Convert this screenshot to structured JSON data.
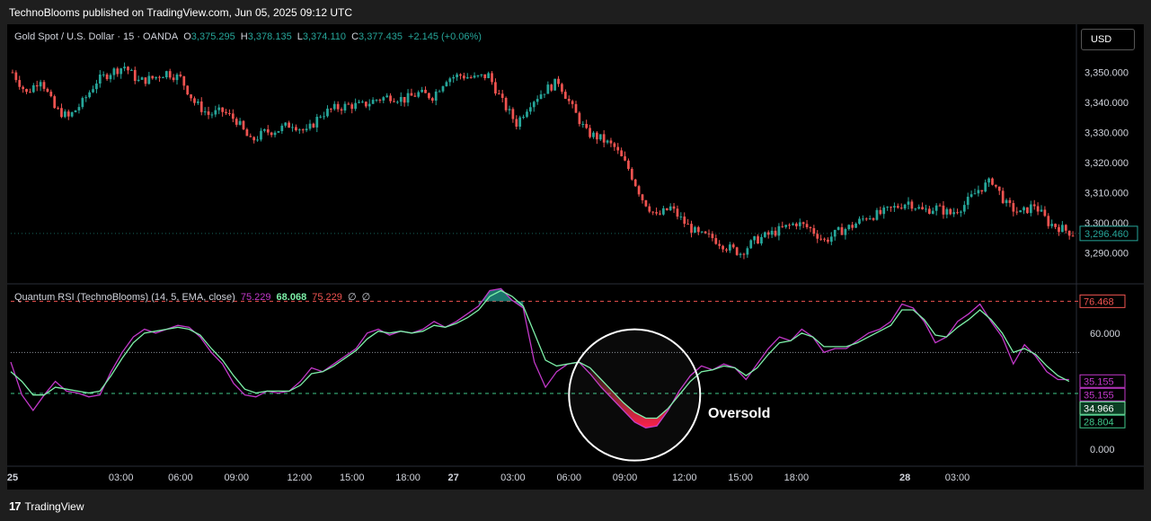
{
  "header": {
    "publisher": "TechnoBlooms published on TradingView.com, Jun 05, 2025 09:12 UTC"
  },
  "footer": {
    "brand": "TradingView"
  },
  "currency_button": "USD",
  "price_legend": {
    "symbol": "Gold Spot / U.S. Dollar · 15 · OANDA",
    "o_label": "O",
    "o": "3,375.295",
    "h_label": "H",
    "h": "3,378.135",
    "l_label": "L",
    "l": "3,374.110",
    "c_label": "C",
    "c": "3,377.435",
    "change": "+2.145 (+0.06%)"
  },
  "rsi_legend": {
    "name": "Quantum RSI (TechnoBlooms) (14, 5, EMA, close)",
    "v1": "75.229",
    "v2": "68.068",
    "v3": "75.229",
    "v4": "∅",
    "v5": "∅"
  },
  "annotation": "Oversold",
  "colors": {
    "up": "#26a69a",
    "down": "#ef5350",
    "rsi": "#c238c9",
    "signal": "#7df0a8",
    "upper": "#ef5350",
    "lower": "#3fc78a"
  },
  "chart_data": [
    {
      "type": "candlestick",
      "title": "Gold Spot / U.S. Dollar · 15 · OANDA",
      "ylim": [
        3280,
        3360
      ],
      "yticks": [
        "3,350.000",
        "3,340.000",
        "3,330.000",
        "3,320.000",
        "3,310.000",
        "3,300.000",
        "3,290.000"
      ],
      "ytick_values": [
        3350,
        3340,
        3330,
        3320,
        3310,
        3300,
        3290
      ],
      "last_price": "3,296.460",
      "last_price_value": 3296.46,
      "close_path": [
        [
          0,
          3350
        ],
        [
          4,
          3343
        ],
        [
          8,
          3348
        ],
        [
          12,
          3338
        ],
        [
          16,
          3335
        ],
        [
          20,
          3340
        ],
        [
          24,
          3347
        ],
        [
          28,
          3350
        ],
        [
          32,
          3352
        ],
        [
          36,
          3347
        ],
        [
          40,
          3348
        ],
        [
          44,
          3350
        ],
        [
          48,
          3348
        ],
        [
          52,
          3340
        ],
        [
          56,
          3336
        ],
        [
          60,
          3337
        ],
        [
          64,
          3334
        ],
        [
          68,
          3327
        ],
        [
          72,
          3330
        ],
        [
          76,
          3331
        ],
        [
          80,
          3333
        ],
        [
          84,
          3330
        ],
        [
          88,
          3336
        ],
        [
          92,
          3338
        ],
        [
          96,
          3339
        ],
        [
          100,
          3339
        ],
        [
          104,
          3341
        ],
        [
          108,
          3342
        ],
        [
          112,
          3341
        ],
        [
          116,
          3343
        ],
        [
          120,
          3342
        ],
        [
          124,
          3348
        ],
        [
          128,
          3349
        ],
        [
          132,
          3348
        ],
        [
          136,
          3349
        ],
        [
          140,
          3340
        ],
        [
          144,
          3333
        ],
        [
          148,
          3340
        ],
        [
          152,
          3344
        ],
        [
          156,
          3347
        ],
        [
          160,
          3338
        ],
        [
          164,
          3330
        ],
        [
          168,
          3328
        ],
        [
          172,
          3325
        ],
        [
          176,
          3318
        ],
        [
          180,
          3308
        ],
        [
          184,
          3302
        ],
        [
          188,
          3305
        ],
        [
          192,
          3300
        ],
        [
          196,
          3296
        ],
        [
          200,
          3295
        ],
        [
          204,
          3292
        ],
        [
          208,
          3290
        ],
        [
          212,
          3294
        ],
        [
          216,
          3296
        ],
        [
          220,
          3298
        ],
        [
          224,
          3300
        ],
        [
          228,
          3298
        ],
        [
          232,
          3294
        ],
        [
          236,
          3297
        ],
        [
          240,
          3299
        ],
        [
          244,
          3302
        ],
        [
          248,
          3303
        ],
        [
          252,
          3305
        ],
        [
          256,
          3307
        ],
        [
          260,
          3304
        ],
        [
          264,
          3305
        ],
        [
          268,
          3303
        ],
        [
          272,
          3306
        ],
        [
          276,
          3311
        ],
        [
          280,
          3314
        ],
        [
          284,
          3306
        ],
        [
          288,
          3303
        ],
        [
          292,
          3306
        ],
        [
          296,
          3300
        ],
        [
          300,
          3298
        ],
        [
          303,
          3296.46
        ]
      ],
      "xticks": [
        "25",
        "03:00",
        "06:00",
        "09:00",
        "12:00",
        "15:00",
        "18:00",
        "27",
        "03:00",
        "06:00",
        "09:00",
        "12:00",
        "15:00",
        "18:00",
        "28",
        "03:00"
      ],
      "xtick_bars": [
        0,
        31,
        48,
        64,
        82,
        97,
        113,
        126,
        143,
        159,
        175,
        192,
        208,
        224,
        255,
        270
      ]
    },
    {
      "type": "line",
      "title": "Quantum RSI (TechnoBlooms) (14, 5, EMA, close)",
      "ylim": [
        -7,
        85
      ],
      "yticks": [
        "60.000",
        "0.000"
      ],
      "ytick_values": [
        60,
        0
      ],
      "levels": {
        "upper": 76.468,
        "middle": 50,
        "lower": 28.804
      },
      "last_values": [
        {
          "label": "76.468",
          "value": 76.468,
          "color": "#ef5350"
        },
        {
          "label": "35.155",
          "value": 35.155,
          "color": "#c238c9"
        },
        {
          "label": "35.155",
          "value": 35.155,
          "color": "#c238c9"
        },
        {
          "label": "34.966",
          "value": 34.966,
          "color": "#7df0a8"
        },
        {
          "label": "28.804",
          "value": 28.804,
          "color": "#3fc78a"
        }
      ],
      "series": [
        {
          "values": [
            [
              0,
              45
            ],
            [
              4,
              28
            ],
            [
              8,
              20
            ],
            [
              12,
              28
            ],
            [
              16,
              35
            ],
            [
              20,
              30
            ],
            [
              24,
              29
            ],
            [
              28,
              27
            ],
            [
              32,
              28
            ],
            [
              36,
              40
            ],
            [
              40,
              50
            ],
            [
              44,
              58
            ],
            [
              48,
              62
            ],
            [
              52,
              60
            ],
            [
              56,
              62
            ],
            [
              60,
              64
            ],
            [
              64,
              63
            ],
            [
              68,
              58
            ],
            [
              72,
              50
            ],
            [
              76,
              44
            ],
            [
              80,
              34
            ],
            [
              84,
              28
            ],
            [
              88,
              27
            ],
            [
              92,
              30
            ],
            [
              96,
              29
            ],
            [
              100,
              30
            ],
            [
              104,
              35
            ],
            [
              108,
              42
            ],
            [
              112,
              40
            ],
            [
              116,
              44
            ],
            [
              120,
              48
            ],
            [
              124,
              52
            ],
            [
              128,
              60
            ],
            [
              132,
              62
            ],
            [
              136,
              59
            ],
            [
              140,
              61
            ],
            [
              144,
              60
            ],
            [
              148,
              62
            ],
            [
              152,
              66
            ],
            [
              156,
              63
            ],
            [
              160,
              66
            ],
            [
              164,
              70
            ],
            [
              168,
              74
            ],
            [
              172,
              82
            ],
            [
              176,
              83
            ],
            [
              180,
              77
            ],
            [
              184,
              73
            ],
            [
              188,
              45
            ],
            [
              192,
              32
            ],
            [
              196,
              40
            ],
            [
              200,
              44
            ],
            [
              204,
              45
            ],
            [
              208,
              39
            ],
            [
              212,
              32
            ],
            [
              216,
              26
            ],
            [
              220,
              20
            ],
            [
              224,
              14
            ],
            [
              228,
              11
            ],
            [
              232,
              12
            ],
            [
              236,
              20
            ],
            [
              240,
              30
            ],
            [
              244,
              38
            ],
            [
              248,
              43
            ],
            [
              252,
              41
            ],
            [
              256,
              44
            ],
            [
              260,
              42
            ],
            [
              264,
              36
            ],
            [
              268,
              44
            ],
            [
              272,
              52
            ],
            [
              276,
              58
            ],
            [
              280,
              56
            ],
            [
              284,
              62
            ],
            [
              288,
              58
            ],
            [
              292,
              50
            ],
            [
              296,
              52
            ],
            [
              300,
              52
            ],
            [
              304,
              56
            ],
            [
              308,
              60
            ],
            [
              312,
              62
            ],
            [
              316,
              66
            ],
            [
              320,
              75
            ],
            [
              324,
              73
            ],
            [
              328,
              66
            ],
            [
              332,
              55
            ],
            [
              336,
              58
            ],
            [
              340,
              66
            ],
            [
              344,
              70
            ],
            [
              348,
              75
            ],
            [
              352,
              66
            ],
            [
              356,
              58
            ],
            [
              360,
              44
            ],
            [
              364,
              54
            ],
            [
              368,
              48
            ],
            [
              372,
              40
            ],
            [
              376,
              36
            ],
            [
              380,
              36
            ]
          ]
        },
        {
          "values": [
            [
              0,
              40
            ],
            [
              4,
              35
            ],
            [
              8,
              28
            ],
            [
              12,
              28
            ],
            [
              16,
              32
            ],
            [
              20,
              31
            ],
            [
              24,
              30
            ],
            [
              28,
              29
            ],
            [
              32,
              30
            ],
            [
              36,
              38
            ],
            [
              40,
              47
            ],
            [
              44,
              55
            ],
            [
              48,
              60
            ],
            [
              52,
              61
            ],
            [
              56,
              62
            ],
            [
              60,
              63
            ],
            [
              64,
              62
            ],
            [
              68,
              59
            ],
            [
              72,
              52
            ],
            [
              76,
              46
            ],
            [
              80,
              38
            ],
            [
              84,
              31
            ],
            [
              88,
              29
            ],
            [
              92,
              30
            ],
            [
              96,
              30
            ],
            [
              100,
              30
            ],
            [
              104,
              33
            ],
            [
              108,
              39
            ],
            [
              112,
              40
            ],
            [
              116,
              43
            ],
            [
              120,
              47
            ],
            [
              124,
              51
            ],
            [
              128,
              57
            ],
            [
              132,
              61
            ],
            [
              136,
              60
            ],
            [
              140,
              61
            ],
            [
              144,
              60
            ],
            [
              148,
              61
            ],
            [
              152,
              64
            ],
            [
              156,
              63
            ],
            [
              160,
              65
            ],
            [
              164,
              68
            ],
            [
              168,
              72
            ],
            [
              172,
              79
            ],
            [
              176,
              82
            ],
            [
              180,
              79
            ],
            [
              184,
              74
            ],
            [
              188,
              60
            ],
            [
              192,
              46
            ],
            [
              196,
              43
            ],
            [
              200,
              44
            ],
            [
              204,
              45
            ],
            [
              208,
              42
            ],
            [
              212,
              36
            ],
            [
              216,
              30
            ],
            [
              220,
              24
            ],
            [
              224,
              19
            ],
            [
              228,
              16
            ],
            [
              232,
              16
            ],
            [
              236,
              21
            ],
            [
              240,
              28
            ],
            [
              244,
              35
            ],
            [
              248,
              40
            ],
            [
              252,
              41
            ],
            [
              256,
              43
            ],
            [
              260,
              42
            ],
            [
              264,
              38
            ],
            [
              268,
              42
            ],
            [
              272,
              49
            ],
            [
              276,
              55
            ],
            [
              280,
              56
            ],
            [
              284,
              60
            ],
            [
              288,
              58
            ],
            [
              292,
              53
            ],
            [
              296,
              53
            ],
            [
              300,
              53
            ],
            [
              304,
              55
            ],
            [
              308,
              58
            ],
            [
              312,
              61
            ],
            [
              316,
              64
            ],
            [
              320,
              72
            ],
            [
              324,
              72
            ],
            [
              328,
              67
            ],
            [
              332,
              59
            ],
            [
              336,
              58
            ],
            [
              340,
              63
            ],
            [
              344,
              67
            ],
            [
              348,
              72
            ],
            [
              352,
              67
            ],
            [
              356,
              60
            ],
            [
              360,
              50
            ],
            [
              364,
              52
            ],
            [
              368,
              49
            ],
            [
              372,
              43
            ],
            [
              376,
              38
            ],
            [
              380,
              35
            ]
          ]
        }
      ]
    }
  ]
}
